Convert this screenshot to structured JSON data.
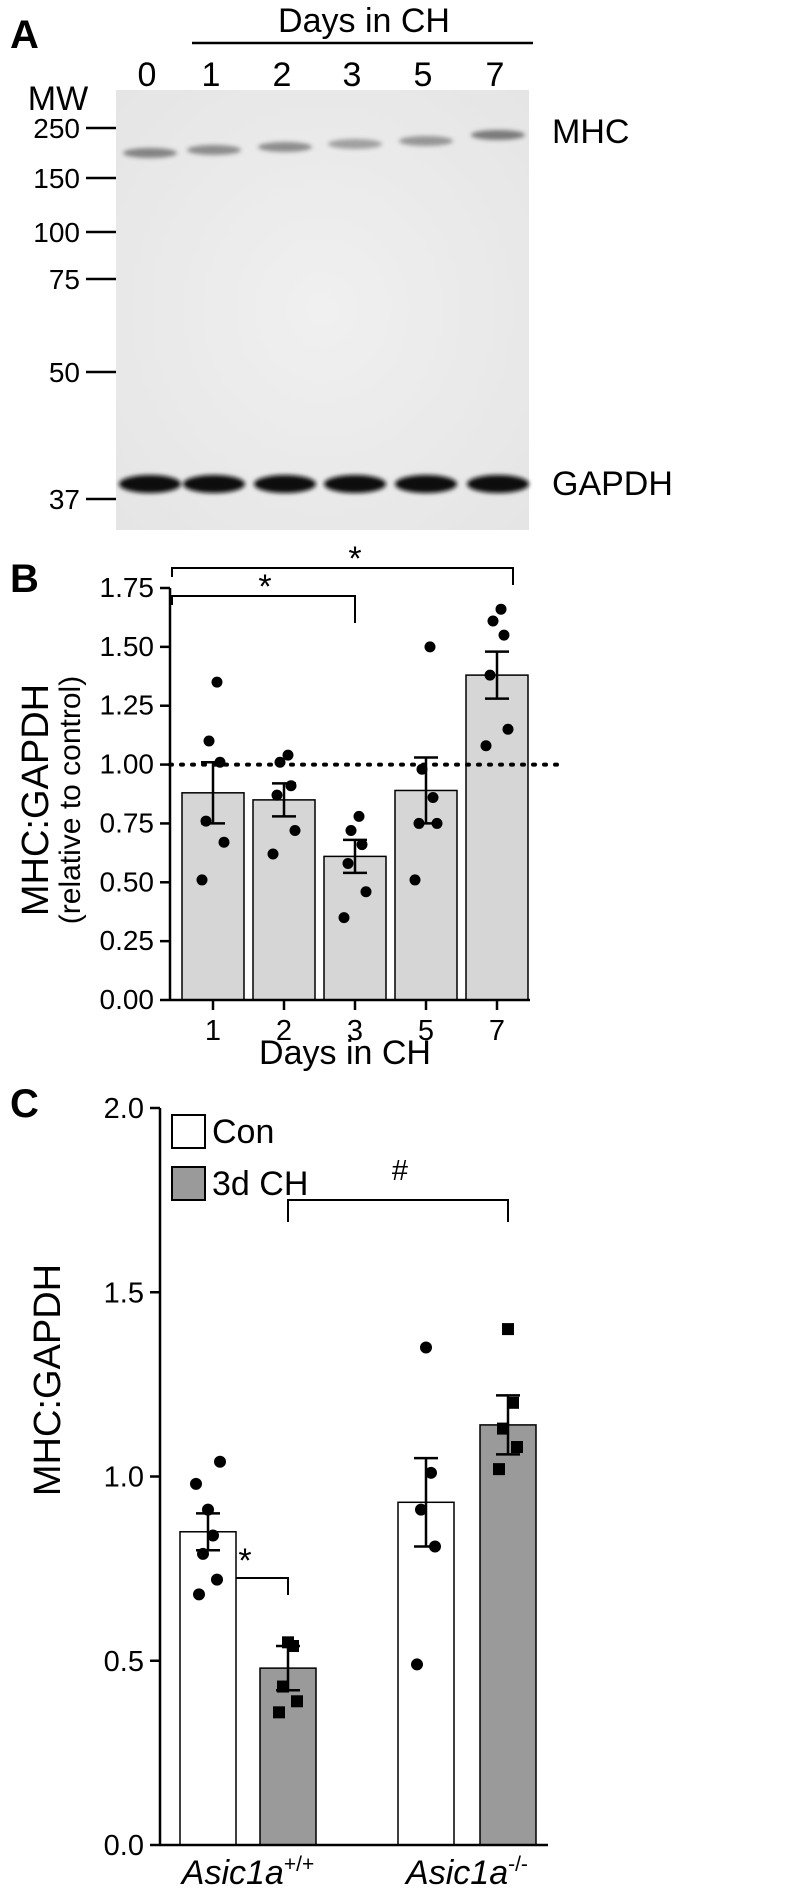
{
  "panel_a": {
    "letter": "A",
    "header": "Days in CH",
    "lane_labels": [
      "0",
      "1",
      "2",
      "3",
      "5",
      "7"
    ],
    "mw_title": "MW",
    "mw_markers": [
      "250",
      "150",
      "100",
      "75",
      "50",
      "37"
    ],
    "band_labels": [
      "MHC",
      "GAPDH"
    ]
  },
  "chart_data": [
    {
      "panel": "B",
      "type": "bar",
      "xlabel": "Days in CH",
      "ylabel": "MHC:GAPDH",
      "ylabel_sub": "(relative to control)",
      "categories": [
        "1",
        "2",
        "3",
        "5",
        "7"
      ],
      "values": [
        0.88,
        0.85,
        0.61,
        0.89,
        1.38
      ],
      "sem": [
        0.13,
        0.07,
        0.07,
        0.14,
        0.1
      ],
      "points": [
        [
          0.51,
          0.67,
          0.76,
          1.01,
          1.1,
          1.35
        ],
        [
          0.62,
          0.72,
          0.87,
          0.91,
          1.01,
          1.04
        ],
        [
          0.35,
          0.46,
          0.58,
          0.66,
          0.72,
          0.78
        ],
        [
          0.51,
          0.75,
          0.75,
          0.86,
          0.98,
          1.5
        ],
        [
          1.08,
          1.15,
          1.38,
          1.55,
          1.61,
          1.66
        ]
      ],
      "ylim": [
        0,
        1.75
      ],
      "yticks": [
        "0.00",
        "0.25",
        "0.50",
        "0.75",
        "1.00",
        "1.25",
        "1.50",
        "1.75"
      ],
      "reference_line": 1.0,
      "bar_color": "#d6d6d6",
      "significance": [
        {
          "from": "1",
          "to": "3",
          "label": "*"
        },
        {
          "from": "1",
          "to": "7",
          "label": "*"
        }
      ]
    },
    {
      "panel": "C",
      "type": "bar",
      "xlabel": "",
      "ylabel": "MHC:GAPDH",
      "groups": [
        {
          "name": "Asic1a",
          "sup": "+/+"
        },
        {
          "name": "Asic1a",
          "sup": "-/-"
        }
      ],
      "series": [
        {
          "name": "Con",
          "color": "#ffffff",
          "values": [
            0.85,
            0.93
          ],
          "sem": [
            0.05,
            0.12
          ],
          "points": [
            [
              0.68,
              0.72,
              0.79,
              0.84,
              0.91,
              0.98,
              1.04
            ],
            [
              0.49,
              0.81,
              0.91,
              1.01,
              1.35
            ]
          ]
        },
        {
          "name": "3d CH",
          "color": "#9a9a9a",
          "values": [
            0.48,
            1.14
          ],
          "sem": [
            0.06,
            0.08
          ],
          "points": [
            [
              0.36,
              0.39,
              0.43,
              0.54,
              0.55
            ],
            [
              1.02,
              1.08,
              1.13,
              1.2,
              1.4
            ]
          ]
        }
      ],
      "ylim": [
        0,
        2.0
      ],
      "yticks": [
        "0.0",
        "0.5",
        "1.0",
        "1.5",
        "2.0"
      ],
      "legend": "top-left",
      "significance": [
        {
          "within": "Asic1a +/+",
          "label": "*"
        },
        {
          "between": "3d CH",
          "label": "#"
        }
      ]
    }
  ]
}
